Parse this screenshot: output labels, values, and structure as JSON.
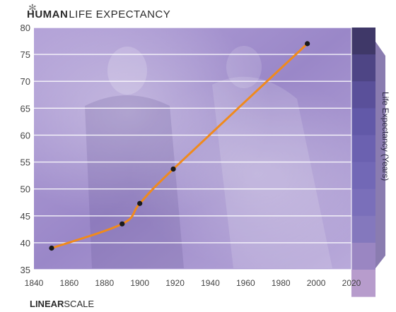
{
  "header": {
    "title_bold": "HUMAN",
    "title_rest": "LIFE EXPECTANCY",
    "logo_icon": "asterisk-icon"
  },
  "footer": {
    "scale_bold": "LINEAR",
    "scale_rest": "SCALE"
  },
  "colors": {
    "background": "#9a87c8",
    "line": "#f08a1c",
    "points": "#1a1a1a",
    "gridline": "#ffffff",
    "tick_text": "#444444",
    "scale_bar_top": "#3f3868",
    "scale_bar_bottom": "#e8b8d0"
  },
  "chart_data": {
    "type": "line",
    "title": "HUMAN LIFE EXPECTANCY",
    "xlabel": "",
    "ylabel": "Life Expectancy (Years)",
    "xlim": [
      1840,
      2020
    ],
    "ylim": [
      35,
      80
    ],
    "x_ticks": [
      "1840",
      "1860",
      "1880",
      "1900",
      "1920",
      "1940",
      "1960",
      "1980",
      "2000",
      "2020"
    ],
    "y_ticks": [
      "35",
      "40",
      "45",
      "50",
      "55",
      "60",
      "65",
      "70",
      "75",
      "80"
    ],
    "grid": true,
    "series": [
      {
        "points": [
          {
            "x": 1850,
            "y": 39
          },
          {
            "x": 1890,
            "y": 43.5
          },
          {
            "x": 1900,
            "y": 47.3
          },
          {
            "x": 1919,
            "y": 53.7
          },
          {
            "x": 1995,
            "y": 77
          }
        ]
      }
    ]
  }
}
